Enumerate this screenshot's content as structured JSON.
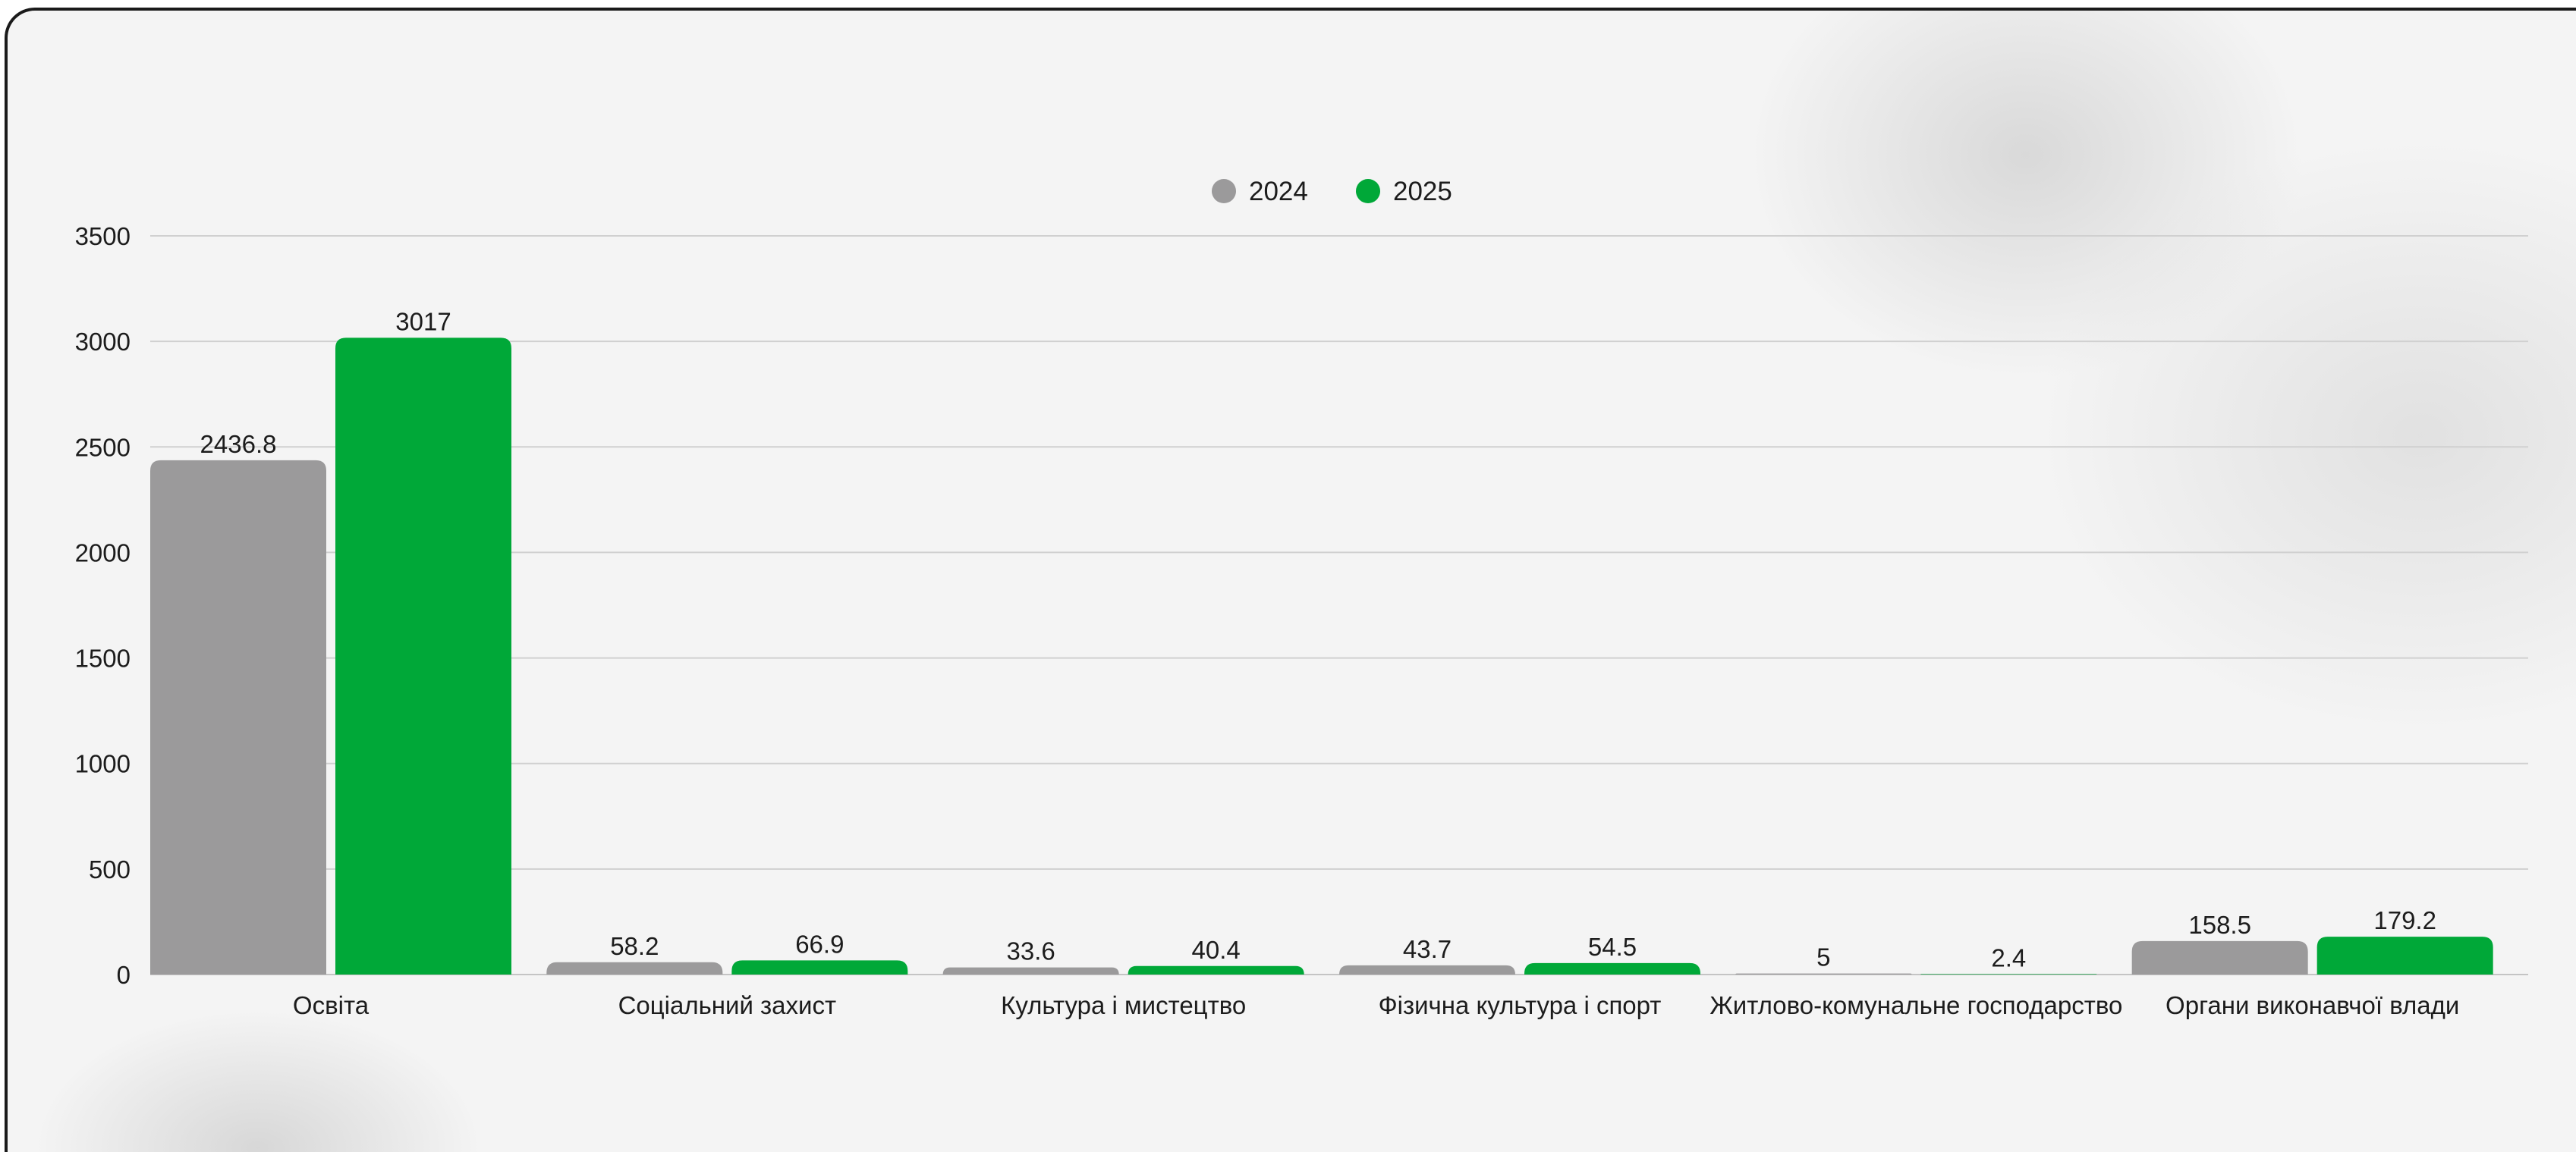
{
  "chart_data": {
    "type": "bar",
    "title": "",
    "xlabel": "",
    "ylabel": "",
    "ylim": [
      0,
      3500
    ],
    "yticks": [
      0,
      500,
      1000,
      1500,
      2000,
      2500,
      3000,
      3500
    ],
    "grid": true,
    "legend_position": "top-center",
    "categories": [
      "Освіта",
      "Соціальний захист",
      "Культура і мистецтво",
      "Фізична культура і спорт",
      "Житлово-комунальне господарство",
      "Органи виконавчої влади"
    ],
    "series": [
      {
        "name": "2024",
        "color": "#9b9a9b",
        "values": [
          2436.8,
          58.2,
          33.6,
          43.7,
          5,
          158.5
        ],
        "labels": [
          "2436.8",
          "58.2",
          "33.6",
          "43.7",
          "5",
          "158.5"
        ]
      },
      {
        "name": "2025",
        "color": "#00a838",
        "values": [
          3017,
          66.9,
          40.4,
          54.5,
          2.4,
          179.2
        ],
        "labels": [
          "3017",
          "66.9",
          "40.4",
          "54.5",
          "2.4",
          "179.2"
        ]
      }
    ]
  }
}
